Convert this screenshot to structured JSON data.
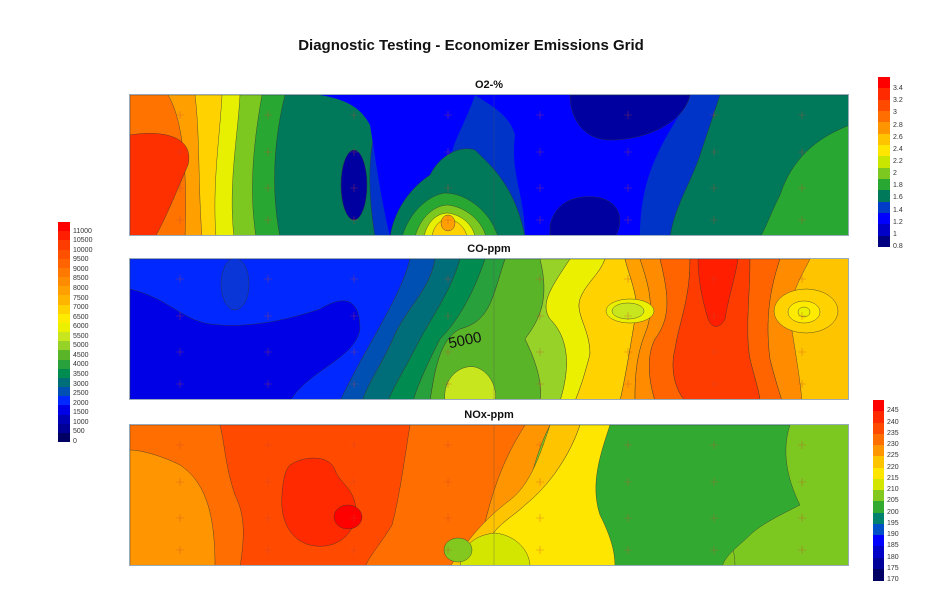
{
  "title": "Diagnostic Testing - Economizer Emissions Grid",
  "chart_data": [
    {
      "type": "heatmap",
      "subtype": "filled-contour",
      "title": "O2-%",
      "colorbar": {
        "position": "right",
        "ticks": [
          "3.4",
          "3.2",
          "3",
          "2.8",
          "2.6",
          "2.4",
          "2.2",
          "2",
          "1.8",
          "1.6",
          "1.4",
          "1.2",
          "1",
          "0.8"
        ],
        "range": [
          0.8,
          3.5
        ],
        "colors": [
          "#ff0000",
          "#ff2a00",
          "#ff4a00",
          "#ff6e00",
          "#ff9500",
          "#ffc400",
          "#ffe600",
          "#c8e600",
          "#7cc820",
          "#28a832",
          "#00785a",
          "#003cc8",
          "#0000ff",
          "#0000c8",
          "#000080"
        ]
      },
      "sample_grid": {
        "columns": 8,
        "rows": 4,
        "marker": "+"
      },
      "description": "High O2 (~3.2-3.4) at far left, decreasing rightward to ~1.0-1.2 in center with local min ~0.9; local maximum ~2.8 at bottom near x≈0.44; rising to ~2.0 at right edge."
    },
    {
      "type": "heatmap",
      "subtype": "filled-contour",
      "title": "CO-ppm",
      "contour_label": "5000",
      "colorbar": {
        "position": "left",
        "ticks": [
          "11000",
          "10500",
          "10000",
          "9500",
          "9000",
          "8500",
          "8000",
          "7500",
          "7000",
          "6500",
          "6000",
          "5500",
          "5000",
          "4500",
          "4000",
          "3500",
          "3000",
          "2500",
          "2000",
          "1500",
          "1000",
          "500",
          "0"
        ],
        "range": [
          0,
          11500
        ],
        "colors": [
          "#ff0000",
          "#ff1e00",
          "#ff3c00",
          "#ff5000",
          "#ff6400",
          "#ff7800",
          "#ff8c00",
          "#ffa000",
          "#ffb400",
          "#ffd200",
          "#ffeb00",
          "#ebf000",
          "#c8e61e",
          "#96d228",
          "#5ab428",
          "#28a03c",
          "#008c50",
          "#006e78",
          "#0050b4",
          "#0028ff",
          "#0000e6",
          "#0000b4",
          "#000096",
          "#000064"
        ]
      },
      "sample_grid": {
        "columns": 8,
        "rows": 4,
        "marker": "+"
      },
      "description": "Low CO (~1000-2000) across left half; gradient through green (~5000) near center; high CO (~9500-10500) band at x≈0.78; moderate yellow-orange (~7000) at right edge with local min near (0.93,0.35)."
    },
    {
      "type": "heatmap",
      "subtype": "filled-contour",
      "title": "NOx-ppm",
      "colorbar": {
        "position": "right",
        "ticks": [
          "245",
          "240",
          "235",
          "230",
          "225",
          "220",
          "215",
          "210",
          "205",
          "200",
          "195",
          "190",
          "185",
          "180",
          "175",
          "170"
        ],
        "range": [
          170,
          250
        ],
        "colors": [
          "#ff0000",
          "#ff2a00",
          "#ff4a00",
          "#ff6e00",
          "#ff9500",
          "#ffc400",
          "#ffe600",
          "#d2e600",
          "#82c81e",
          "#32aa32",
          "#00826e",
          "#0050c8",
          "#0000ff",
          "#0000c8",
          "#00009b",
          "#000064"
        ]
      },
      "sample_grid": {
        "columns": 8,
        "rows": 4,
        "marker": "+"
      },
      "description": "Higher NOx (~235-245) in left/center-left with peak ~245 near (0.31,0.65); decreasing rightward to ~200-205 green region in right half."
    }
  ],
  "plots": {
    "o2": {
      "title": "O2-%"
    },
    "co": {
      "title": "CO-ppm",
      "contour_label": "5000"
    },
    "nox": {
      "title": "NOx-ppm"
    }
  }
}
